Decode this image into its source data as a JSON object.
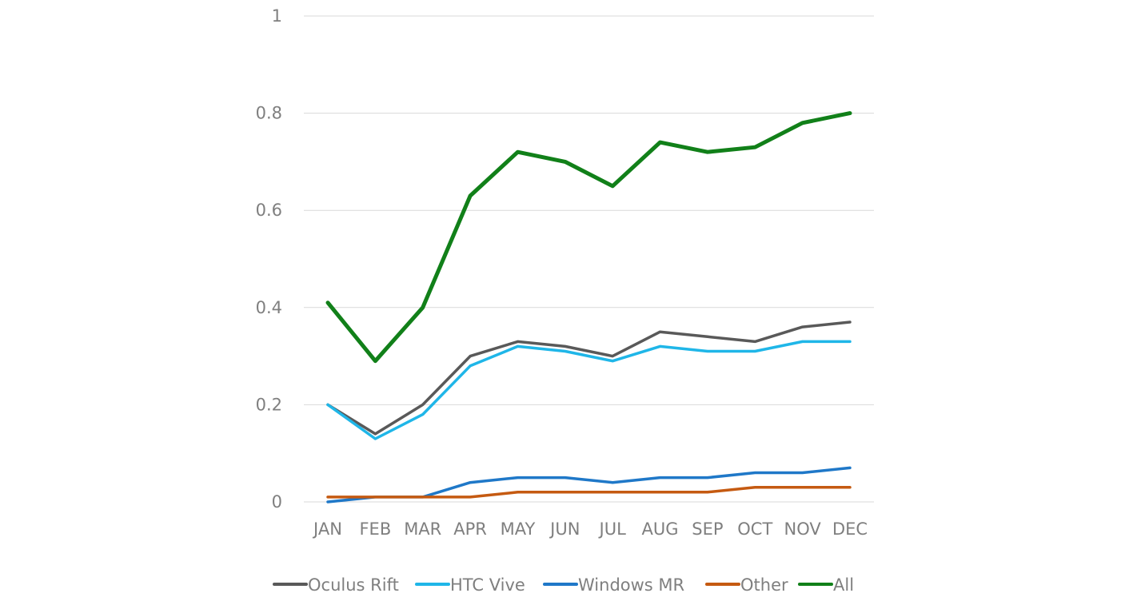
{
  "chart_data": {
    "type": "line",
    "title": "",
    "xlabel": "",
    "ylabel": "",
    "categories": [
      "JAN",
      "FEB",
      "MAR",
      "APR",
      "MAY",
      "JUN",
      "JUL",
      "AUG",
      "SEP",
      "OCT",
      "NOV",
      "DEC"
    ],
    "ylim": [
      0,
      1
    ],
    "yticks": [
      "0",
      "0.2",
      "0.4",
      "0.6",
      "0.8",
      "1"
    ],
    "grid": "horizontal",
    "legend_position": "bottom",
    "series": [
      {
        "name": "Oculus Rift",
        "color": "#595959",
        "values": [
          0.2,
          0.14,
          0.2,
          0.3,
          0.33,
          0.32,
          0.3,
          0.35,
          0.34,
          0.33,
          0.36,
          0.37
        ]
      },
      {
        "name": "HTC Vive",
        "color": "#1fb6e8",
        "values": [
          0.2,
          0.13,
          0.18,
          0.28,
          0.32,
          0.31,
          0.29,
          0.32,
          0.31,
          0.31,
          0.33,
          0.33
        ]
      },
      {
        "name": "Windows MR",
        "color": "#1f78c8",
        "values": [
          0.0,
          0.01,
          0.01,
          0.04,
          0.05,
          0.05,
          0.04,
          0.05,
          0.05,
          0.06,
          0.06,
          0.07
        ]
      },
      {
        "name": "Other",
        "color": "#c55a11",
        "values": [
          0.01,
          0.01,
          0.01,
          0.01,
          0.02,
          0.02,
          0.02,
          0.02,
          0.02,
          0.03,
          0.03,
          0.03
        ]
      },
      {
        "name": "All",
        "color": "#118019",
        "values": [
          0.41,
          0.29,
          0.4,
          0.63,
          0.72,
          0.7,
          0.65,
          0.74,
          0.72,
          0.73,
          0.78,
          0.8
        ]
      }
    ]
  }
}
